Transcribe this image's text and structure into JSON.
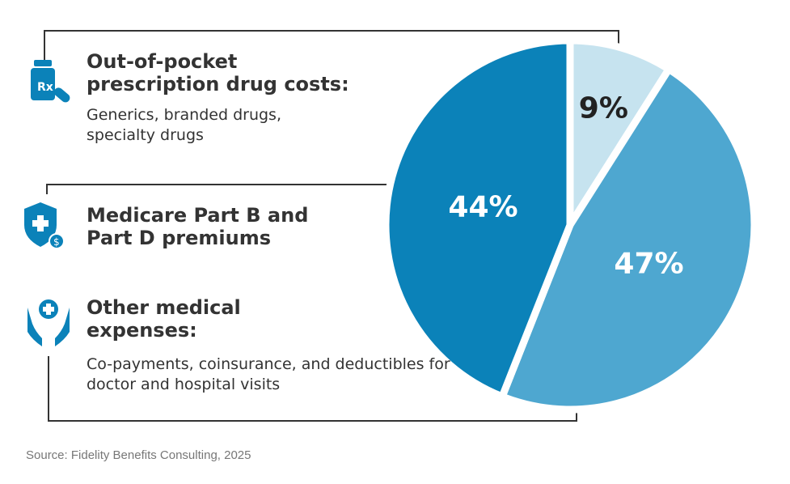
{
  "chart_data": {
    "type": "pie",
    "categories": [
      "Out-of-pocket prescription drug costs:",
      "Other medical expenses:",
      "Medicare Part B and Part D premiums"
    ],
    "descriptions": [
      "Generics, branded drugs, specialty drugs",
      "Co-payments, coinsurance, and deductibles for doctor and hospital visits"
    ],
    "values": [
      9,
      47,
      44
    ],
    "value_labels": [
      "9%",
      "47%",
      "44%"
    ],
    "colors": [
      "#c6e3ef",
      "#4ea7d0",
      "#0b82b9"
    ],
    "label_colors": [
      "#222222",
      "#ffffff",
      "#ffffff"
    ],
    "source": "Source: Fidelity Benefits Consulting, 2025"
  }
}
